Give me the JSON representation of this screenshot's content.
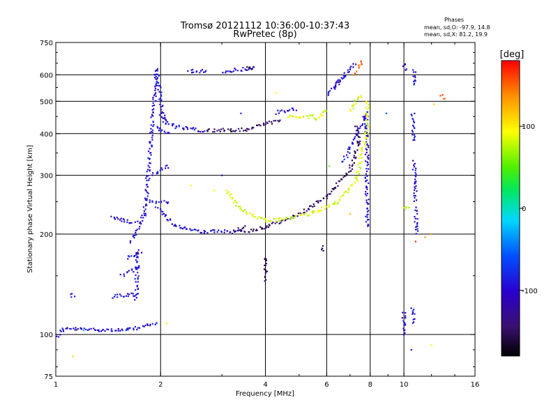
{
  "chart_data": {
    "type": "scatter",
    "title": "Tromsø 20121112 10:36:00-10:37:43",
    "subtitle": "RwPretec (8p)",
    "info": {
      "heading": "Phases",
      "line_o": "mean, sd,O: -97.9, 14.8",
      "line_x": "mean, sd,X: 81.2, 19.9"
    },
    "xlabel": "Frequency [MHz]",
    "ylabel": "Stationary phase Virtual Height [km]",
    "x_scale": "log",
    "y_scale": "log",
    "xlim": [
      1,
      16
    ],
    "ylim": [
      75,
      750
    ],
    "x_ticks": [
      1,
      2,
      4,
      6,
      8,
      10,
      16
    ],
    "x_tick_labels": [
      "1",
      "2",
      "4",
      "6",
      "8",
      "10",
      "16"
    ],
    "x_grid": [
      2,
      4,
      6,
      8,
      10
    ],
    "y_ticks": [
      75,
      100,
      200,
      300,
      400,
      500,
      600,
      750
    ],
    "y_tick_labels": [
      "75",
      "100",
      "200",
      "300",
      "400",
      "500",
      "600",
      "750"
    ],
    "y_grid": [
      100,
      200,
      300,
      400,
      500,
      600
    ],
    "colorbar": {
      "label": "[deg]",
      "range": [
        -180,
        180
      ],
      "ticks": [
        100,
        0,
        -100
      ],
      "tick_labels": [
        "100",
        "0",
        "-100"
      ]
    },
    "series": [
      {
        "value_deg": -95,
        "segments": [
          [
            1.0,
            98,
            1.05,
            104
          ],
          [
            1.05,
            104,
            1.6,
            103
          ],
          [
            1.6,
            103,
            1.95,
            108
          ],
          [
            1.1,
            131,
            1.12,
            131
          ],
          [
            1.45,
            130,
            1.7,
            132
          ],
          [
            1.7,
            128,
            1.72,
            180
          ],
          [
            1.55,
            150,
            1.75,
            160
          ],
          [
            1.6,
            170,
            1.75,
            175
          ],
          [
            1.65,
            190,
            1.8,
            230
          ],
          [
            1.8,
            230,
            1.95,
            620
          ],
          [
            1.95,
            620,
            2.05,
            430
          ],
          [
            1.85,
            250,
            2.1,
            250
          ],
          [
            1.9,
            300,
            2.1,
            320
          ],
          [
            1.95,
            420,
            2.1,
            400
          ],
          [
            1.95,
            240,
            2.2,
            212
          ],
          [
            2.2,
            212,
            2.6,
            204
          ],
          [
            2.6,
            204,
            3.4,
            203
          ],
          [
            1.45,
            227,
            1.5,
            222
          ],
          [
            1.5,
            222,
            1.7,
            216
          ],
          [
            2.0,
            450,
            2.2,
            420
          ],
          [
            2.2,
            420,
            2.7,
            408
          ],
          [
            2.4,
            615,
            2.7,
            615
          ],
          [
            3.0,
            613,
            3.7,
            630
          ],
          [
            4.3,
            462,
            4.9,
            475
          ],
          [
            6.0,
            520,
            6.7,
            590
          ],
          [
            6.3,
            550,
            7.2,
            650
          ],
          [
            7.8,
            460,
            7.85,
            210
          ],
          [
            10.0,
            117,
            10.0,
            100
          ],
          [
            10.0,
            650,
            10.05,
            620
          ],
          [
            10.7,
            620,
            10.8,
            560
          ],
          [
            10.7,
            330,
            10.8,
            250
          ],
          [
            10.8,
            240,
            10.9,
            200
          ],
          [
            10.6,
            460,
            10.7,
            380
          ],
          [
            10.6,
            120,
            10.7,
            108
          ],
          [
            6.7,
            330,
            7.8,
            460
          ]
        ]
      },
      {
        "value_deg": -150,
        "segments": [
          [
            2.7,
            408,
            3.5,
            412
          ],
          [
            3.5,
            412,
            4.4,
            440
          ],
          [
            3.4,
            203,
            4.0,
            210
          ],
          [
            4.0,
            210,
            5.0,
            230
          ],
          [
            5.0,
            230,
            6.0,
            260
          ],
          [
            6.0,
            260,
            7.0,
            310
          ],
          [
            7.0,
            310,
            7.4,
            380
          ],
          [
            7.4,
            380,
            7.3,
            420
          ],
          [
            3.2,
            203,
            3.5,
            210
          ],
          [
            3.5,
            625,
            3.7,
            632
          ],
          [
            4.0,
            170,
            4.02,
            145
          ],
          [
            5.8,
            185,
            5.82,
            180
          ]
        ]
      },
      {
        "value_deg": 85,
        "segments": [
          [
            3.1,
            270,
            3.4,
            236
          ],
          [
            3.4,
            236,
            4.0,
            220
          ],
          [
            4.0,
            220,
            4.6,
            222
          ],
          [
            4.6,
            222,
            5.5,
            232
          ],
          [
            5.5,
            232,
            6.5,
            250
          ],
          [
            6.5,
            250,
            7.3,
            290
          ],
          [
            7.3,
            290,
            7.8,
            400
          ],
          [
            7.8,
            400,
            7.85,
            500
          ],
          [
            4.6,
            450,
            5.5,
            450
          ],
          [
            5.5,
            440,
            6.0,
            470
          ],
          [
            7.0,
            470,
            7.5,
            520
          ],
          [
            10.0,
            240,
            10.3,
            240
          ]
        ]
      },
      {
        "value_deg": 150,
        "segments": [
          [
            7.2,
            600,
            7.6,
            660
          ],
          [
            12.8,
            520,
            13.0,
            510
          ]
        ]
      }
    ],
    "points": [
      {
        "f": 1.12,
        "h": 86,
        "value_deg": 110
      },
      {
        "f": 2.08,
        "h": 108,
        "value_deg": 90
      },
      {
        "f": 4.3,
        "h": 530,
        "value_deg": 100
      },
      {
        "f": 12.0,
        "h": 93,
        "value_deg": 100
      },
      {
        "f": 11.5,
        "h": 196,
        "value_deg": 140
      },
      {
        "f": 10.8,
        "h": 190,
        "value_deg": 170
      },
      {
        "f": 12.0,
        "h": 200,
        "value_deg": 140
      },
      {
        "f": 7.0,
        "h": 230,
        "value_deg": 120
      },
      {
        "f": 6.1,
        "h": 320,
        "value_deg": 60
      },
      {
        "f": 12.2,
        "h": 490,
        "value_deg": 115
      },
      {
        "f": 2.45,
        "h": 280,
        "value_deg": 95
      },
      {
        "f": 2.85,
        "h": 270,
        "value_deg": 100
      },
      {
        "f": 3.0,
        "h": 300,
        "value_deg": -120
      },
      {
        "f": 3.4,
        "h": 460,
        "value_deg": -80
      },
      {
        "f": 8.9,
        "h": 460,
        "value_deg": -60
      },
      {
        "f": 1.2,
        "h": 103,
        "value_deg": -30
      },
      {
        "f": 10.5,
        "h": 90,
        "value_deg": -100
      },
      {
        "f": 10.0,
        "h": 240,
        "value_deg": 80
      }
    ]
  }
}
